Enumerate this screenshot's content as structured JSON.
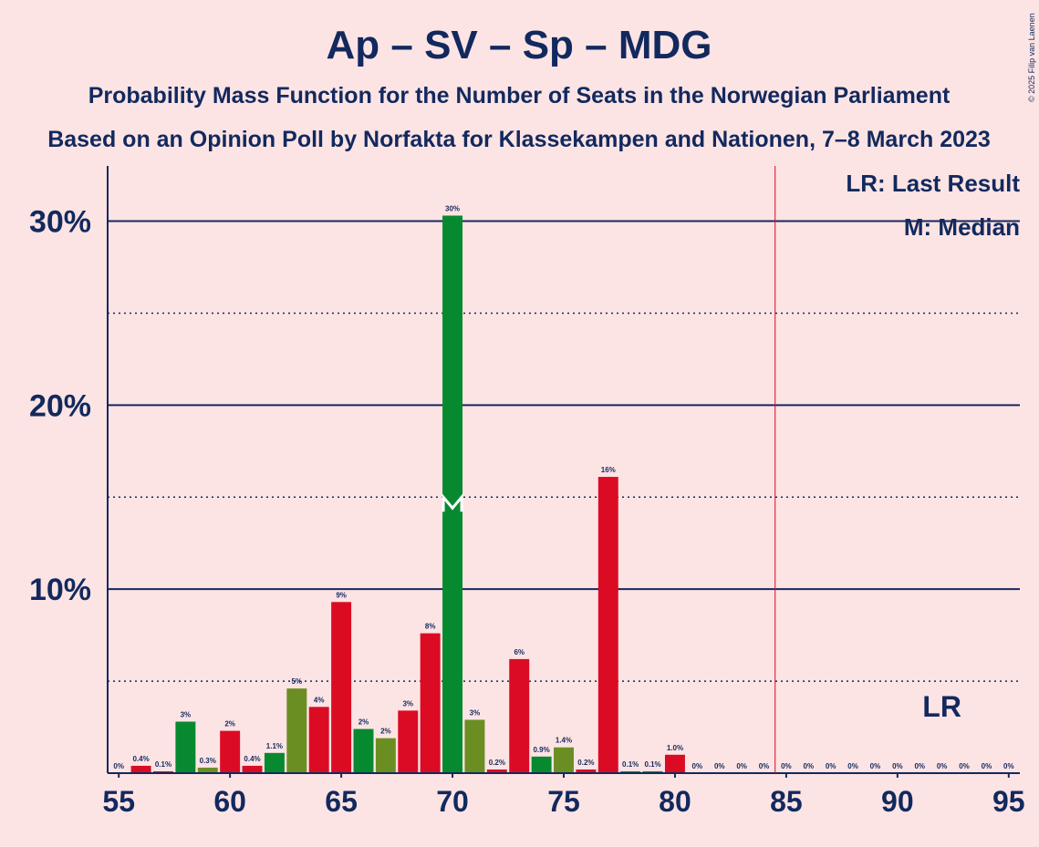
{
  "chart_data": {
    "type": "bar",
    "title": "Ap – SV – Sp – MDG",
    "subtitle": "Probability Mass Function for the Number of Seats in the Norwegian Parliament",
    "subtitle2": "Based on an Opinion Poll by Norfakta for Klassekampen and Nationen, 7–8 March 2023",
    "copyright": "© 2025 Filip van Laenen",
    "legend": [
      "LR: Last Result",
      "M: Median"
    ],
    "x": [
      55,
      56,
      57,
      58,
      59,
      60,
      61,
      62,
      63,
      64,
      65,
      66,
      67,
      68,
      69,
      70,
      71,
      72,
      73,
      74,
      75,
      76,
      77,
      78,
      79,
      80,
      81,
      82,
      83,
      84,
      85,
      86,
      87,
      88,
      89,
      90,
      91,
      92,
      93,
      94,
      95
    ],
    "values": [
      0,
      0.4,
      0.1,
      2.8,
      0.3,
      2.3,
      0.4,
      1.1,
      4.6,
      3.6,
      9.3,
      2.4,
      1.9,
      3.4,
      7.6,
      30.3,
      2.9,
      0.2,
      6.2,
      0.9,
      1.4,
      0.2,
      16.1,
      0.1,
      0.1,
      1.0,
      0,
      0,
      0,
      0,
      0,
      0,
      0,
      0,
      0,
      0,
      0,
      0,
      0,
      0,
      0
    ],
    "value_labels": [
      "0%",
      "0.4%",
      "0.1%",
      "3%",
      "0.3%",
      "2%",
      "0.4%",
      "1.1%",
      "5%",
      "4%",
      "9%",
      "2%",
      "2%",
      "3%",
      "8%",
      "30%",
      "3%",
      "0.2%",
      "6%",
      "0.9%",
      "1.4%",
      "0.2%",
      "16%",
      "0.1%",
      "0.1%",
      "1.0%",
      "0%",
      "0%",
      "0%",
      "0%",
      "0%",
      "0%",
      "0%",
      "0%",
      "0%",
      "0%",
      "0%",
      "0%",
      "0%",
      "0%",
      "0%"
    ],
    "colors": [
      "#dc0b24",
      "#dc0b24",
      "#dc0b24",
      "#078a2f",
      "#6b8e23",
      "#dc0b24",
      "#dc0b24",
      "#078a2f",
      "#6b8e23",
      "#dc0b24",
      "#dc0b24",
      "#078a2f",
      "#6b8e23",
      "#dc0b24",
      "#dc0b24",
      "#078a2f",
      "#6b8e23",
      "#dc0b24",
      "#dc0b24",
      "#078a2f",
      "#6b8e23",
      "#dc0b24",
      "#dc0b24",
      "#078a2f",
      "#078a2f",
      "#dc0b24",
      "#dc0b24",
      "#dc0b24",
      "#dc0b24",
      "#dc0b24",
      "#dc0b24",
      "#dc0b24",
      "#dc0b24",
      "#dc0b24",
      "#dc0b24",
      "#dc0b24",
      "#dc0b24",
      "#dc0b24",
      "#dc0b24",
      "#dc0b24",
      "#dc0b24"
    ],
    "xlim": [
      54.5,
      95.5
    ],
    "xticks": [
      55,
      60,
      65,
      70,
      75,
      80,
      85,
      90,
      95
    ],
    "ylim": [
      0,
      33
    ],
    "yticks": [
      {
        "value": 10,
        "label": "10%"
      },
      {
        "value": 20,
        "label": "20%"
      },
      {
        "value": 30,
        "label": "30%"
      }
    ],
    "minor_yticks": [
      5,
      15,
      25
    ],
    "majority": 84.5,
    "median": 70,
    "last_result": 92,
    "last_result_label": "LR"
  }
}
